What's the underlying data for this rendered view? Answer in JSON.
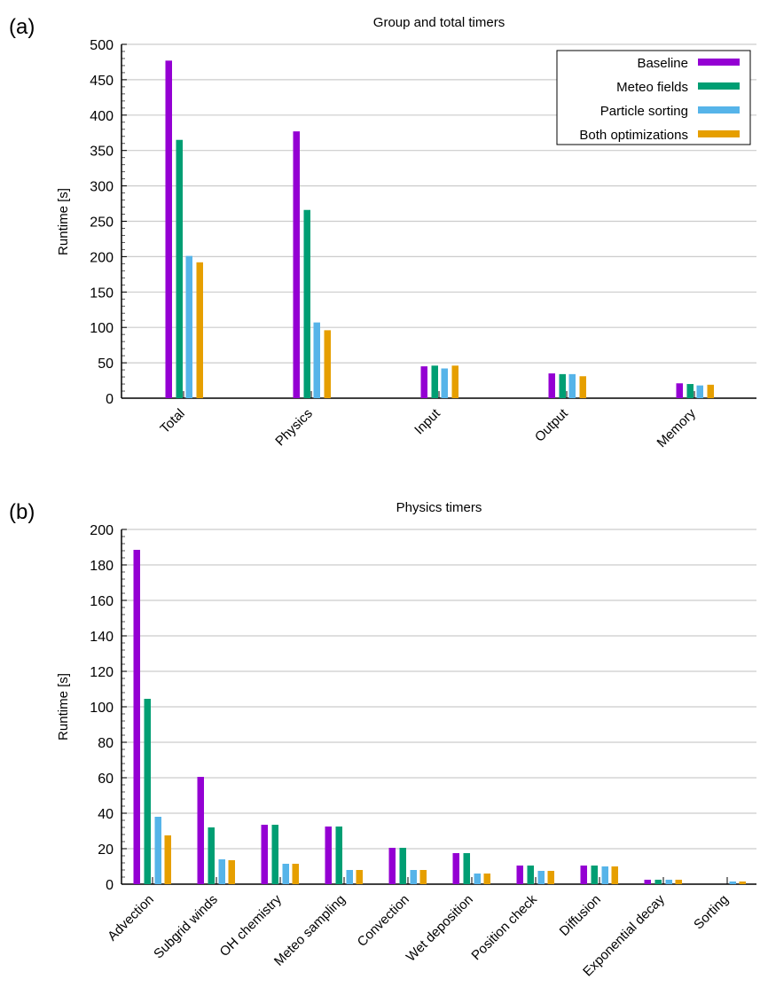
{
  "chart_data": [
    {
      "type": "bar",
      "panel_label": "(a)",
      "title": "Group and total timers",
      "xlabel": "",
      "ylabel": "Runtime [s]",
      "ylim": [
        0,
        500
      ],
      "yticks": [
        0,
        50,
        100,
        150,
        200,
        250,
        300,
        350,
        400,
        450,
        500
      ],
      "grid": true,
      "legend_position": "top-right",
      "categories": [
        "Total",
        "Physics",
        "Input",
        "Output",
        "Memory"
      ],
      "series": [
        {
          "name": "Baseline",
          "color": "#9400d3",
          "values": [
            477,
            377,
            45,
            35,
            21
          ]
        },
        {
          "name": "Meteo fields",
          "color": "#009e73",
          "values": [
            365,
            266,
            46,
            34,
            20
          ]
        },
        {
          "name": "Particle sorting",
          "color": "#56b4e9",
          "values": [
            201,
            107,
            42,
            34,
            18
          ]
        },
        {
          "name": "Both optimizations",
          "color": "#e69f00",
          "values": [
            192,
            96,
            46,
            31,
            19
          ]
        }
      ]
    },
    {
      "type": "bar",
      "panel_label": "(b)",
      "title": "Physics timers",
      "xlabel": "",
      "ylabel": "Runtime [s]",
      "ylim": [
        0,
        200
      ],
      "yticks": [
        0,
        20,
        40,
        60,
        80,
        100,
        120,
        140,
        160,
        180,
        200
      ],
      "grid": true,
      "categories": [
        "Advection",
        "Subgrid winds",
        "OH chemistry",
        "Meteo sampling",
        "Convection",
        "Wet deposition",
        "Position check",
        "Diffusion",
        "Exponential decay",
        "Sorting"
      ],
      "series": [
        {
          "name": "Baseline",
          "color": "#9400d3",
          "values": [
            188.5,
            60.5,
            33.5,
            32.5,
            20.5,
            17.5,
            10.5,
            10.5,
            2.5,
            0
          ]
        },
        {
          "name": "Meteo fields",
          "color": "#009e73",
          "values": [
            104.5,
            32,
            33.5,
            32.5,
            20.5,
            17.5,
            10.5,
            10.5,
            2.5,
            0
          ]
        },
        {
          "name": "Particle sorting",
          "color": "#56b4e9",
          "values": [
            38,
            14,
            11.5,
            8,
            8,
            6,
            7.5,
            10,
            2.5,
            1.5
          ]
        },
        {
          "name": "Both optimizations",
          "color": "#e69f00",
          "values": [
            27.5,
            13.5,
            11.5,
            8,
            8,
            6,
            7.5,
            10,
            2.5,
            1.5
          ]
        }
      ]
    }
  ]
}
